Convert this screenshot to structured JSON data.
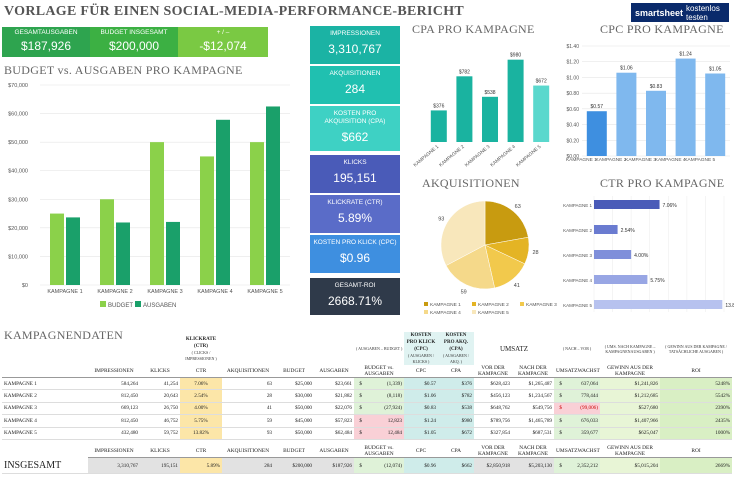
{
  "title": "VORLAGE FÜR EINEN SOCIAL-MEDIA-PERFORMANCE-BERICHT",
  "logo": {
    "brand": "smartsheet",
    "cta": "kostenlos testen"
  },
  "kpis": [
    {
      "label": "GESAMTAUSGABEN",
      "value": "$187,926",
      "color": "#2ea44f"
    },
    {
      "label": "BUDGET INSGESAMT",
      "value": "$200,000",
      "color": "#3cb043"
    },
    {
      "label": "+ / –",
      "value": "-$12,074",
      "color": "#7ac943"
    }
  ],
  "sections": {
    "budget": "BUDGET vs. AUSGABEN PRO KAMPAGNE",
    "cpa": "CPA PRO KAMPAGNE",
    "cpc": "CPC PRO KAMPAGNE",
    "akq": "AKQUISITIONEN",
    "ctr": "CTR PRO KAMPAGNE",
    "data": "KAMPAGNENDATEN"
  },
  "tiles": [
    {
      "label": "IMPRESSIONEN",
      "value": "3,310,767",
      "color": "#1bb3a4"
    },
    {
      "label": "AKQUISITIONEN",
      "value": "284",
      "color": "#20c0b0"
    },
    {
      "label": "KOSTEN PRO AKQUISITION (CPA)",
      "value": "$662",
      "color": "#3ed1c4"
    },
    {
      "label": "KLICKS",
      "value": "195,151",
      "color": "#4a5bb8"
    },
    {
      "label": "KLICKRATE (CTR)",
      "value": "5.89%",
      "color": "#5a6cc8"
    },
    {
      "label": "KOSTEN PRO KLICK (CPC)",
      "value": "$0.96",
      "color": "#3e8fe0"
    },
    {
      "label": "GESAMT-ROI",
      "value": "2668.71%",
      "color": "#2f3a4a"
    }
  ],
  "chart_data": [
    {
      "type": "bar",
      "title": "BUDGET vs. AUSGABEN PRO KAMPAGNE",
      "categories": [
        "KAMPAGNE 1",
        "KAMPAGNE 2",
        "KAMPAGNE 3",
        "KAMPAGNE 4",
        "KAMPAGNE 5"
      ],
      "series": [
        {
          "name": "BUDGET",
          "values": [
            25000,
            30000,
            50000,
            45000,
            50000
          ],
          "color": "#8bd14a"
        },
        {
          "name": "AUSGABEN",
          "values": [
            23661,
            21882,
            22076,
            57823,
            62484
          ],
          "color": "#1aa06a"
        }
      ],
      "ylim": [
        0,
        70000
      ],
      "yticks": [
        "$0",
        "$10,000",
        "$20,000",
        "$30,000",
        "$40,000",
        "$50,000",
        "$60,000",
        "$70,000"
      ],
      "legend": [
        "BUDGET",
        "AUSGABEN"
      ]
    },
    {
      "type": "bar",
      "title": "CPA PRO KAMPAGNE",
      "categories": [
        "KAMPAGNE 1",
        "KAMPAGNE 2",
        "KAMPAGNE 3",
        "KAMPAGNE 4",
        "KAMPAGNE 5"
      ],
      "values": [
        376,
        782,
        538,
        980,
        672
      ],
      "labels": [
        "$376",
        "$782",
        "$538",
        "$980",
        "$672"
      ],
      "ylim": [
        0,
        1000
      ]
    },
    {
      "type": "bar",
      "title": "CPC PRO KAMPAGNE",
      "categories": [
        "KAMPAGNE 1",
        "KAMPAGNE 2",
        "KAMPAGNE 3",
        "KAMPAGNE 4",
        "KAMPAGNE 5"
      ],
      "values": [
        0.57,
        1.06,
        0.83,
        1.24,
        1.05
      ],
      "labels": [
        "$0.57",
        "$1.06",
        "$0.83",
        "$1.24",
        "$1.05"
      ],
      "ylim": [
        0,
        1.4
      ],
      "yticks": [
        "$0.00",
        "$0.20",
        "$0.40",
        "$0.60",
        "$0.80",
        "$1.00",
        "$1.20",
        "$1.40"
      ]
    },
    {
      "type": "pie",
      "title": "AKQUISITIONEN",
      "categories": [
        "KAMPAGNE 1",
        "KAMPAGNE 2",
        "KAMPAGNE 3",
        "KAMPAGNE 4",
        "KAMPAGNE 5"
      ],
      "values": [
        63,
        28,
        41,
        59,
        93
      ]
    },
    {
      "type": "bar",
      "title": "CTR PRO KAMPAGNE",
      "categories": [
        "KAMPAGNE 1",
        "KAMPAGNE 2",
        "KAMPAGNE 3",
        "KAMPAGNE 4",
        "KAMPAGNE 5"
      ],
      "values": [
        7.06,
        2.54,
        4.0,
        5.75,
        13.82
      ],
      "labels": [
        "7.06%",
        "2.54%",
        "4.00%",
        "5.75%",
        "13.82%"
      ],
      "xlim": [
        0,
        14
      ]
    }
  ],
  "table": {
    "top": {
      "ctr_note": "( CLICKS / IMPRESSIONEN )",
      "budget_note": "( AUSGABEN – BUDGET )",
      "cpc_title": "KOSTEN PRO KLICK (CPC)",
      "cpc_note": "( AUSGABEN / KLICKS )",
      "cpa_title": "KOSTEN PRO AKQ. (CPA)",
      "cpa_note": "( AUSGABEN / AKQ. )",
      "umsatz": "UMSATZ",
      "wachstum_note": "( NACH – VOR )",
      "gewinn_note": "( UMS. NACH KAMPAGNE – KAMPAGNENAUSGABEN )",
      "roi_note": "( GEWINN AUS DER KAMPAGNE / TATSÄCHLICHE AUSGABEN )"
    },
    "headers": [
      "",
      "IMPRESSIONEN",
      "KLICKS",
      "CTR",
      "AKQUISITIONEN",
      "BUDGET",
      "AUSGABEN",
      "BUDGET vs. AUSGABEN",
      "CPC",
      "CPA",
      "VOR DER KAMPAGNE",
      "NACH DER KAMPAGNE",
      "UMSATZWACHSTUM",
      "GEWINN AUS DER KAMPAGNE",
      "ROI"
    ],
    "rows": [
      [
        "KAMPAGNE 1",
        "584,264",
        "41,254",
        "7.06%",
        "63",
        "$25,000",
        "$23,661",
        "$",
        "(1,339)",
        "$0.57",
        "$376",
        "$628,423",
        "$1,265,487",
        "$",
        "637,064",
        "$1,241,826",
        "5248%"
      ],
      [
        "KAMPAGNE 2",
        "812,450",
        "20,643",
        "2.54%",
        "28",
        "$30,000",
        "$21,882",
        "$",
        "(8,118)",
        "$1.06",
        "$782",
        "$456,123",
        "$1,234,567",
        "$",
        "778,444",
        "$1,212,685",
        "5542%"
      ],
      [
        "KAMPAGNE 3",
        "669,123",
        "26,750",
        "4.00%",
        "41",
        "$50,000",
        "$22,076",
        "$",
        "(27,924)",
        "$0.83",
        "$538",
        "$648,762",
        "$549,756",
        "$",
        "(99,006)",
        "$527,680",
        "2390%"
      ],
      [
        "KAMPAGNE 4",
        "812,450",
        "46,752",
        "5.75%",
        "59",
        "$45,000",
        "$57,823",
        "$",
        "12,823",
        "$1.24",
        "$980",
        "$789,756",
        "$1,465,789",
        "$",
        "676,033",
        "$1,407,966",
        "2435%"
      ],
      [
        "KAMPAGNE 5",
        "432,480",
        "59,752",
        "13.82%",
        "93",
        "$50,000",
        "$62,484",
        "$",
        "12,484",
        "$1.05",
        "$672",
        "$327,854",
        "$687,531",
        "$",
        "359,677",
        "$625,047",
        "1000%"
      ]
    ],
    "total_headers": [
      "IMPRESSIONEN",
      "KLICKS",
      "CTR",
      "AKQUISITIONEN",
      "BUDGET",
      "AUSGABEN",
      "BUDGET vs. AUSGABEN",
      "CPC",
      "CPA",
      "VOR DER KAMPAGNE",
      "NACH DER KAMPAGNE",
      "UMSATZWACHSTUM",
      "GEWINN AUS DER KAMPAGNE",
      "ROI"
    ],
    "total": {
      "label": "INSGESAMT",
      "values": [
        "3,310,767",
        "195,151",
        "5.89%",
        "284",
        "$200,000",
        "$187,926",
        "$",
        "(12,074)",
        "$0.96",
        "$662",
        "$2,850,918",
        "$5,203,130",
        "$",
        "2,352,212",
        "$5,015,204",
        "2669%"
      ]
    }
  }
}
